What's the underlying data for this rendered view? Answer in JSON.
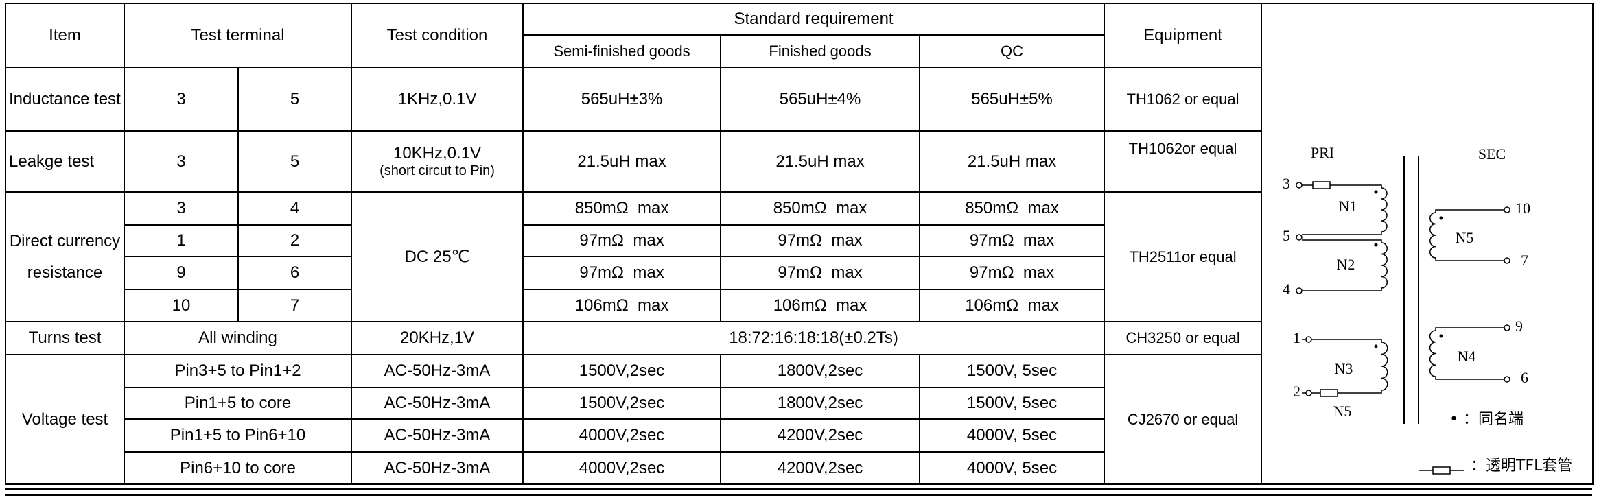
{
  "header": {
    "item": "Item",
    "test_terminal": "Test terminal",
    "test_condition": "Test condition",
    "standard_requirement": "Standard requirement",
    "standards": [
      "Semi-finished goods",
      "Finished goods",
      "QC"
    ],
    "equipment": "Equipment"
  },
  "tests": [
    {
      "item": "Inductance test",
      "terminals": [
        "3",
        "5"
      ],
      "condition": "1KHz,0.1V",
      "requirements": [
        "565uH±3%",
        "565uH±4%",
        "565uH±5%"
      ],
      "equipment": "TH1062 or equal"
    },
    {
      "item": "Leakge test",
      "terminals": [
        "3",
        "5"
      ],
      "condition": "10KHz,0.1V",
      "condition_note": "(short circut to Pin)",
      "requirements": [
        "21.5uH max",
        "21.5uH max",
        "21.5uH max"
      ],
      "equipment": "TH1062or equal"
    },
    {
      "item": "Direct currency resistance",
      "condition": "DC 25℃",
      "equipment": "TH2511or equal",
      "rows": [
        {
          "terminals": [
            "3",
            "4"
          ],
          "requirements": [
            "850mΩ  max",
            "850mΩ  max",
            "850mΩ  max"
          ]
        },
        {
          "terminals": [
            "1",
            "2"
          ],
          "requirements": [
            "97mΩ  max",
            "97mΩ  max",
            "97mΩ  max"
          ]
        },
        {
          "terminals": [
            "9",
            "6"
          ],
          "requirements": [
            "97mΩ  max",
            "97mΩ  max",
            "97mΩ  max"
          ]
        },
        {
          "terminals": [
            "10",
            "7"
          ],
          "requirements": [
            "106mΩ  max",
            "106mΩ  max",
            "106mΩ  max"
          ]
        }
      ]
    },
    {
      "item": "Turns test",
      "terminal": "All winding",
      "condition": "20KHz,1V",
      "requirement": "18:72:16:18:18(±0.2Ts)",
      "equipment": "CH3250 or equal"
    },
    {
      "item": "Voltage test",
      "equipment": "CJ2670 or equal",
      "rows": [
        {
          "terminal": "Pin3+5 to Pin1+2",
          "condition": "AC-50Hz-3mA",
          "requirements": [
            "1500V,2sec",
            "1800V,2sec",
            "1500V, 5sec"
          ]
        },
        {
          "terminal": "Pin1+5 to core",
          "condition": "AC-50Hz-3mA",
          "requirements": [
            "1500V,2sec",
            "1800V,2sec",
            "1500V, 5sec"
          ]
        },
        {
          "terminal": "Pin1+5 to Pin6+10",
          "condition": "AC-50Hz-3mA",
          "requirements": [
            "4000V,2sec",
            "4200V,2sec",
            "4000V, 5sec"
          ]
        },
        {
          "terminal": "Pin6+10 to core",
          "condition": "AC-50Hz-3mA",
          "requirements": [
            "4000V,2sec",
            "4200V,2sec",
            "4000V, 5sec"
          ]
        }
      ]
    }
  ],
  "schematic": {
    "primary": "PRI",
    "secondary": "SEC",
    "pins": [
      "3",
      "5",
      "4",
      "1",
      "2",
      "10",
      "7",
      "9",
      "6"
    ],
    "windings": [
      "N1",
      "N2",
      "N3",
      "N5",
      "N5",
      "N4"
    ],
    "legend_dot": "•  ：同名端",
    "legend_sleeve": "：透明TFL套管"
  }
}
